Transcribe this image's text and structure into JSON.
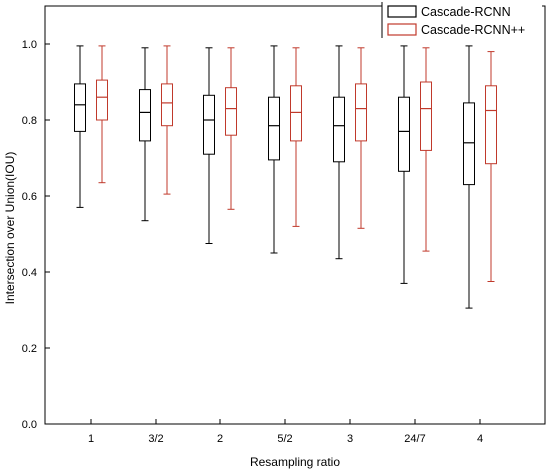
{
  "chart_data": {
    "type": "box",
    "xlabel": "Resampling ratio",
    "ylabel": "Intersection over Union(IOU)",
    "ylim": [
      0.0,
      1.0
    ],
    "yticks": [
      "0.0",
      "0.2",
      "0.4",
      "0.6",
      "0.8",
      "1.0"
    ],
    "categories": [
      "1",
      "3/2",
      "2",
      "5/2",
      "3",
      "24/7",
      "4"
    ],
    "legend_position": "top-right",
    "series": [
      {
        "name": "Cascade-RCNN",
        "color": "#000000",
        "boxes": [
          {
            "min": 0.57,
            "q1": 0.77,
            "median": 0.84,
            "q3": 0.895,
            "max": 0.995
          },
          {
            "min": 0.535,
            "q1": 0.745,
            "median": 0.82,
            "q3": 0.88,
            "max": 0.99
          },
          {
            "min": 0.475,
            "q1": 0.71,
            "median": 0.8,
            "q3": 0.865,
            "max": 0.99
          },
          {
            "min": 0.45,
            "q1": 0.695,
            "median": 0.785,
            "q3": 0.86,
            "max": 0.995
          },
          {
            "min": 0.435,
            "q1": 0.69,
            "median": 0.785,
            "q3": 0.86,
            "max": 0.995
          },
          {
            "min": 0.37,
            "q1": 0.665,
            "median": 0.77,
            "q3": 0.86,
            "max": 0.995
          },
          {
            "min": 0.305,
            "q1": 0.63,
            "median": 0.74,
            "q3": 0.845,
            "max": 0.995
          }
        ]
      },
      {
        "name": "Cascade-RCNN++",
        "color": "#c0392b",
        "boxes": [
          {
            "min": 0.635,
            "q1": 0.8,
            "median": 0.86,
            "q3": 0.905,
            "max": 0.995
          },
          {
            "min": 0.605,
            "q1": 0.785,
            "median": 0.845,
            "q3": 0.895,
            "max": 0.995
          },
          {
            "min": 0.565,
            "q1": 0.76,
            "median": 0.83,
            "q3": 0.885,
            "max": 0.99
          },
          {
            "min": 0.52,
            "q1": 0.745,
            "median": 0.82,
            "q3": 0.89,
            "max": 0.99
          },
          {
            "min": 0.515,
            "q1": 0.745,
            "median": 0.83,
            "q3": 0.895,
            "max": 0.99
          },
          {
            "min": 0.455,
            "q1": 0.72,
            "median": 0.83,
            "q3": 0.9,
            "max": 0.99
          },
          {
            "min": 0.375,
            "q1": 0.685,
            "median": 0.825,
            "q3": 0.89,
            "max": 0.98
          }
        ]
      }
    ]
  }
}
